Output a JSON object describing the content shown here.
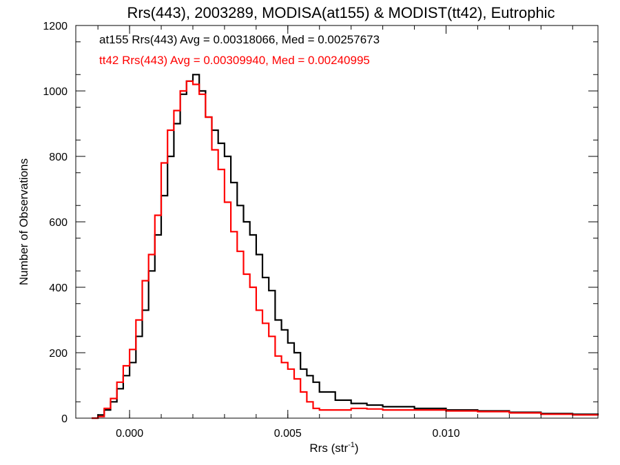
{
  "chart_data": {
    "type": "line",
    "title": "Rrs(443), 2003289, MODISA(at155) & MODIST(tt42), Eutrophic",
    "xlabel": "Rrs (str",
    "xlabel_sup": "-1",
    "xlabel_end": ")",
    "ylabel": "Number of Observations",
    "xlim": [
      -0.0017,
      0.0148
    ],
    "ylim": [
      0,
      1200
    ],
    "x_ticks": [
      0.0,
      0.005,
      0.01
    ],
    "x_tick_labels": [
      "0.000",
      "0.005",
      "0.010"
    ],
    "y_ticks": [
      0,
      200,
      400,
      600,
      800,
      1000,
      1200
    ],
    "y_tick_labels": [
      "0",
      "200",
      "400",
      "600",
      "800",
      "1000",
      "1200"
    ],
    "grid": false,
    "annotations": [
      {
        "text": "at155 Rrs(443) Avg = 0.00318066, Med = 0.00257673",
        "color": "#000000"
      },
      {
        "text": "tt42 Rrs(443) Avg = 0.00309940, Med = 0.00240995",
        "color": "#ff0000"
      }
    ],
    "series": [
      {
        "name": "at155",
        "color": "#000000",
        "style": "step",
        "x": [
          -0.0012,
          -0.001,
          -0.0008,
          -0.0006,
          -0.0004,
          -0.0002,
          0.0,
          0.0002,
          0.0004,
          0.0006,
          0.0008,
          0.001,
          0.0012,
          0.0014,
          0.0016,
          0.0018,
          0.002,
          0.0022,
          0.0024,
          0.0026,
          0.0028,
          0.003,
          0.0032,
          0.0034,
          0.0036,
          0.0038,
          0.004,
          0.0042,
          0.0044,
          0.0046,
          0.0048,
          0.005,
          0.0052,
          0.0054,
          0.0056,
          0.0058,
          0.006,
          0.0065,
          0.007,
          0.0075,
          0.008,
          0.009,
          0.01,
          0.011,
          0.012,
          0.013,
          0.014,
          0.0148
        ],
        "y": [
          0,
          10,
          25,
          50,
          90,
          130,
          170,
          250,
          330,
          450,
          560,
          680,
          800,
          900,
          990,
          1030,
          1050,
          1000,
          920,
          880,
          840,
          800,
          720,
          650,
          600,
          560,
          500,
          430,
          390,
          300,
          270,
          230,
          200,
          150,
          130,
          110,
          80,
          55,
          45,
          40,
          35,
          30,
          25,
          22,
          18,
          14,
          12,
          10
        ]
      },
      {
        "name": "tt42",
        "color": "#ff0000",
        "style": "step",
        "x": [
          -0.0012,
          -0.001,
          -0.0008,
          -0.0006,
          -0.0004,
          -0.0002,
          0.0,
          0.0002,
          0.0004,
          0.0006,
          0.0008,
          0.001,
          0.0012,
          0.0014,
          0.0016,
          0.0018,
          0.002,
          0.0022,
          0.0024,
          0.0026,
          0.0028,
          0.003,
          0.0032,
          0.0034,
          0.0036,
          0.0038,
          0.004,
          0.0042,
          0.0044,
          0.0046,
          0.0048,
          0.005,
          0.0052,
          0.0054,
          0.0056,
          0.0058,
          0.006,
          0.0065,
          0.007,
          0.0075,
          0.008,
          0.009,
          0.01,
          0.011,
          0.012,
          0.013,
          0.014,
          0.0148
        ],
        "y": [
          0,
          5,
          30,
          60,
          110,
          160,
          210,
          300,
          420,
          500,
          620,
          780,
          880,
          940,
          1000,
          1030,
          1020,
          990,
          920,
          820,
          760,
          660,
          570,
          510,
          440,
          400,
          330,
          290,
          250,
          190,
          170,
          150,
          120,
          80,
          50,
          30,
          25,
          25,
          30,
          28,
          25,
          25,
          22,
          20,
          16,
          12,
          10,
          8
        ]
      }
    ]
  }
}
